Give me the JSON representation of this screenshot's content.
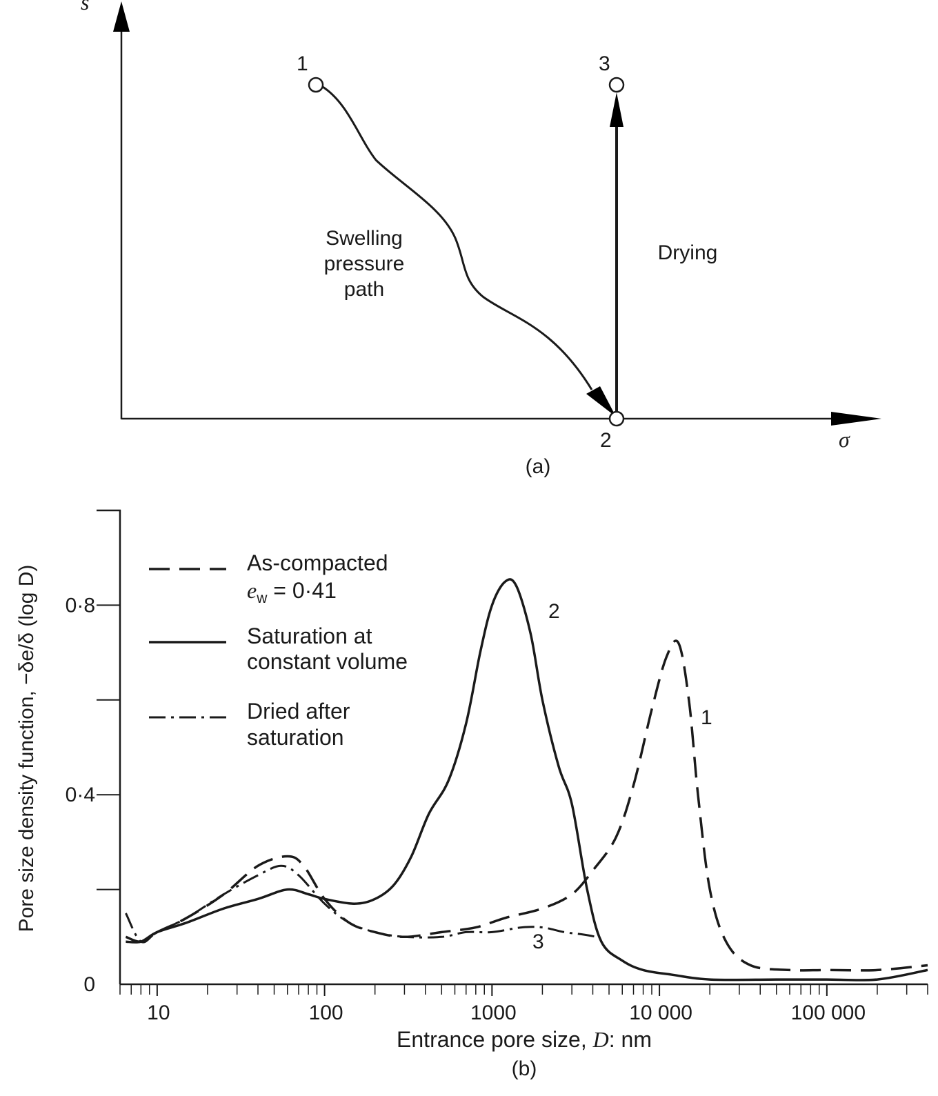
{
  "chart_data": [
    {
      "type": "diagram",
      "panel": "(a)",
      "ylabel": "s",
      "xlabel": "σ",
      "points": [
        {
          "id": "1",
          "label": "1",
          "sigma": 0.33,
          "s": 0.95
        },
        {
          "id": "2",
          "label": "2",
          "sigma": 0.82,
          "s": 0.0
        },
        {
          "id": "3",
          "label": "3",
          "sigma": 0.82,
          "s": 0.95
        }
      ],
      "paths": [
        {
          "name": "swelling",
          "from": "1",
          "to": "2",
          "label_lines": [
            "Swelling",
            "pressure",
            "path"
          ]
        },
        {
          "name": "drying",
          "from": "2",
          "to": "3",
          "label_lines": [
            "Drying"
          ]
        }
      ]
    },
    {
      "type": "line",
      "panel": "(b)",
      "xlabel_parts": [
        "Entrance pore size, ",
        "D",
        ": nm"
      ],
      "ylabel": "Pore size density function, −δe/δ (log D)",
      "xscale": "log",
      "xlim": [
        6,
        400000
      ],
      "ylim": [
        0,
        1.0
      ],
      "yticks": [
        {
          "value": 0,
          "label": "0"
        },
        {
          "value": 0.4,
          "label": "0·4"
        },
        {
          "value": 0.8,
          "label": "0·8"
        }
      ],
      "xticks": [
        {
          "value": 10,
          "label": "10"
        },
        {
          "value": 100,
          "label": "100"
        },
        {
          "value": 1000,
          "label": "1000"
        },
        {
          "value": 10000,
          "label": "10 000"
        },
        {
          "value": 100000,
          "label": "100 000"
        }
      ],
      "legend_position": "upper-left",
      "series": [
        {
          "name": "As-compacted",
          "legend_lines": [
            "As-compacted",
            "e_w = 0·41"
          ],
          "curve_label": "1",
          "style": "dashed",
          "x": [
            6.5,
            8,
            10,
            15,
            25,
            40,
            60,
            75,
            100,
            140,
            200,
            300,
            500,
            800,
            1200,
            2000,
            3000,
            4000,
            5500,
            7000,
            9000,
            11000,
            13000,
            15000,
            17000,
            20000,
            25000,
            35000,
            60000,
            100000,
            200000,
            400000
          ],
          "y": [
            0.1,
            0.09,
            0.11,
            0.14,
            0.19,
            0.25,
            0.27,
            0.25,
            0.18,
            0.13,
            0.11,
            0.1,
            0.11,
            0.12,
            0.14,
            0.16,
            0.19,
            0.24,
            0.31,
            0.42,
            0.58,
            0.69,
            0.72,
            0.6,
            0.4,
            0.2,
            0.09,
            0.04,
            0.03,
            0.03,
            0.03,
            0.04
          ]
        },
        {
          "name": "Saturation at constant volume",
          "legend_lines": [
            "Saturation at",
            "constant volume"
          ],
          "curve_label": "2",
          "style": "solid",
          "x": [
            6.5,
            8,
            10,
            15,
            25,
            40,
            60,
            80,
            100,
            150,
            200,
            260,
            330,
            420,
            550,
            700,
            850,
            1000,
            1200,
            1400,
            1700,
            2000,
            2500,
            3000,
            3700,
            4500,
            6000,
            8000,
            12000,
            20000,
            50000,
            100000,
            200000,
            400000
          ],
          "y": [
            0.09,
            0.09,
            0.11,
            0.13,
            0.16,
            0.18,
            0.2,
            0.19,
            0.18,
            0.17,
            0.18,
            0.21,
            0.27,
            0.36,
            0.43,
            0.55,
            0.7,
            0.8,
            0.85,
            0.84,
            0.74,
            0.6,
            0.46,
            0.38,
            0.2,
            0.09,
            0.05,
            0.03,
            0.02,
            0.01,
            0.01,
            0.01,
            0.01,
            0.03
          ]
        },
        {
          "name": "Dried after saturation",
          "legend_lines": [
            "Dried after",
            "saturation"
          ],
          "curve_label": "3",
          "style": "dashdot",
          "x": [
            6.5,
            8,
            10,
            15,
            25,
            40,
            55,
            70,
            100,
            140,
            200,
            300,
            500,
            700,
            1000,
            1500,
            2000,
            2700,
            3500,
            4200
          ],
          "y": [
            0.15,
            0.09,
            0.11,
            0.14,
            0.19,
            0.23,
            0.25,
            0.23,
            0.17,
            0.13,
            0.11,
            0.1,
            0.1,
            0.11,
            0.11,
            0.12,
            0.12,
            0.11,
            0.105,
            0.1
          ]
        }
      ]
    }
  ]
}
